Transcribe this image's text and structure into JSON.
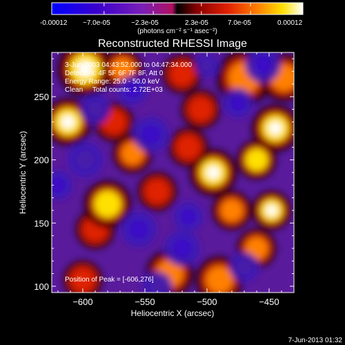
{
  "chart_data": {
    "type": "heatmap",
    "title": "Reconstructed RHESSI Image",
    "colorbar": {
      "ticks": [
        "-0.00012",
        "−7.0e-05",
        "−2.3e-05",
        "2.3e-05",
        "7.0e-05",
        "0.00012"
      ],
      "range": [
        -0.00012,
        0.00012
      ],
      "unit_label": "(photons cm⁻² s⁻¹ asec⁻²)",
      "colors": [
        "#0000ff",
        "#3a00cc",
        "#7a1fb8",
        "#b01060",
        "#000000",
        "#8a0000",
        "#e02000",
        "#ff8000",
        "#ffe000",
        "#ffffff"
      ]
    },
    "xlabel": "Heliocentric X (arcsec)",
    "ylabel": "Heliocentric Y (arcsec)",
    "x_ticks": [
      -600,
      -550,
      -500,
      -450
    ],
    "y_ticks": [
      100,
      150,
      200,
      250
    ],
    "xlim": [
      -625,
      -430
    ],
    "ylim": [
      95,
      285
    ],
    "annotations": [
      "3-Jun-2003 04:43:52.000 to 04:47:34.000",
      "Detectors: 4F 5F 6F 7F 8F, Att 0",
      "Energy Range: 25.0 - 50.0 keV",
      "Clean     Total counts: 2.72E+03"
    ],
    "peak_label": "Position of Peak = [-606,276]",
    "blobs": [
      {
        "x": -598,
        "y": 272,
        "v": 1.0,
        "r": 14
      },
      {
        "x": -612,
        "y": 230,
        "v": 0.95,
        "r": 12
      },
      {
        "x": -568,
        "y": 272,
        "v": 0.6,
        "r": 10
      },
      {
        "x": -520,
        "y": 268,
        "v": 0.55,
        "r": 10
      },
      {
        "x": -505,
        "y": 240,
        "v": 0.5,
        "r": 10
      },
      {
        "x": -470,
        "y": 265,
        "v": 0.7,
        "r": 14
      },
      {
        "x": -438,
        "y": 265,
        "v": 0.75,
        "r": 12
      },
      {
        "x": -445,
        "y": 225,
        "v": 0.9,
        "r": 12
      },
      {
        "x": -460,
        "y": 200,
        "v": 0.85,
        "r": 10
      },
      {
        "x": -495,
        "y": 190,
        "v": 0.95,
        "r": 12
      },
      {
        "x": -480,
        "y": 160,
        "v": 0.7,
        "r": 10
      },
      {
        "x": -448,
        "y": 160,
        "v": 0.95,
        "r": 10
      },
      {
        "x": -460,
        "y": 130,
        "v": 0.8,
        "r": 10
      },
      {
        "x": -490,
        "y": 105,
        "v": 0.75,
        "r": 12
      },
      {
        "x": -530,
        "y": 110,
        "v": 0.6,
        "r": 12
      },
      {
        "x": -590,
        "y": 145,
        "v": 0.55,
        "r": 10
      },
      {
        "x": -580,
        "y": 165,
        "v": 0.85,
        "r": 12
      },
      {
        "x": -560,
        "y": 205,
        "v": 0.75,
        "r": 10
      },
      {
        "x": -575,
        "y": 230,
        "v": 0.45,
        "r": 10
      },
      {
        "x": -600,
        "y": 105,
        "v": 0.55,
        "r": 10
      },
      {
        "x": -540,
        "y": 175,
        "v": 0.4,
        "r": 10
      },
      {
        "x": -515,
        "y": 210,
        "v": 0.45,
        "r": 10
      },
      {
        "x": -598,
        "y": 200,
        "v": -0.45,
        "r": 12
      },
      {
        "x": -620,
        "y": 180,
        "v": -0.5,
        "r": 10
      },
      {
        "x": -555,
        "y": 145,
        "v": -0.8,
        "r": 12
      },
      {
        "x": -545,
        "y": 220,
        "v": -0.55,
        "r": 12
      },
      {
        "x": -590,
        "y": 240,
        "v": -0.4,
        "r": 10
      },
      {
        "x": -455,
        "y": 275,
        "v": -0.7,
        "r": 12
      },
      {
        "x": -475,
        "y": 245,
        "v": -0.5,
        "r": 10
      },
      {
        "x": -515,
        "y": 155,
        "v": -0.55,
        "r": 10
      },
      {
        "x": -520,
        "y": 130,
        "v": -0.6,
        "r": 12
      },
      {
        "x": -470,
        "y": 115,
        "v": -0.35,
        "r": 10
      },
      {
        "x": -560,
        "y": 255,
        "v": -0.5,
        "r": 10
      },
      {
        "x": -540,
        "y": 100,
        "v": -0.3,
        "r": 10
      },
      {
        "x": -500,
        "y": 275,
        "v": -0.35,
        "r": 8
      }
    ]
  },
  "footer": {
    "timestamp": "7-Jun-2013 01:32"
  }
}
